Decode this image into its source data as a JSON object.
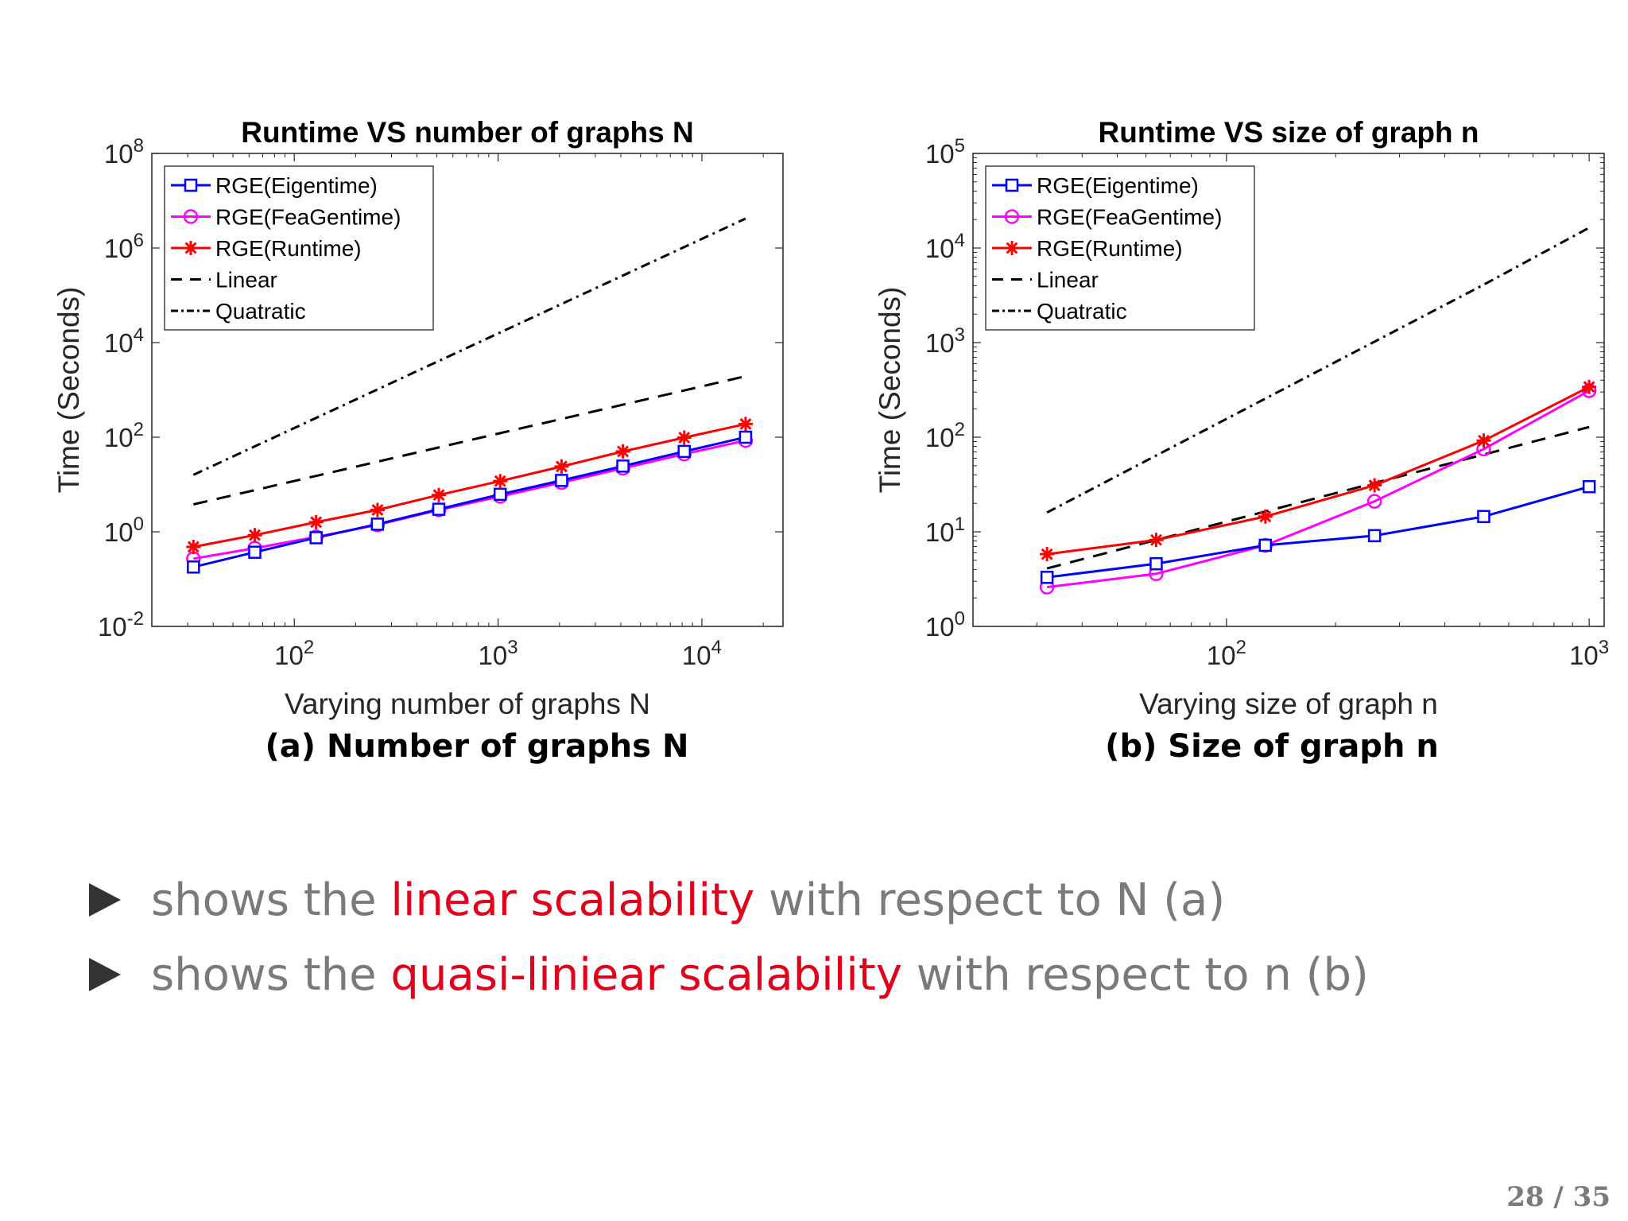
{
  "slide": {
    "page_number": "28 / 35"
  },
  "captions": {
    "a": "(a) Number of graphs N",
    "b": "(b) Size of graph n"
  },
  "bullets": [
    {
      "prefix": "shows the ",
      "highlight": "linear scalability",
      "suffix": " with respect to N (a)"
    },
    {
      "prefix": "shows the ",
      "highlight": "quasi-liniear scalability",
      "suffix": " with respect to n (b)"
    }
  ],
  "colors": {
    "eigen": "#0000ff",
    "feagen": "#ff00ff",
    "runtime": "#ff0000",
    "reference": "#000000",
    "highlight": "#e3001b",
    "text_gray": "#7a7a7a"
  },
  "chart_data": [
    {
      "type": "line",
      "title": "Runtime VS number of graphs N",
      "xlabel": "Varying number of graphs N",
      "ylabel": "Time (Seconds)",
      "xscale": "log",
      "yscale": "log",
      "xlim": [
        20,
        25000
      ],
      "ylim": [
        0.01,
        100000000
      ],
      "xticks": [
        {
          "v": 100,
          "base": "10",
          "exp": "2"
        },
        {
          "v": 1000,
          "base": "10",
          "exp": "3"
        },
        {
          "v": 10000,
          "base": "10",
          "exp": "4"
        }
      ],
      "yticks": [
        {
          "v": 0.01,
          "base": "10",
          "exp": "-2"
        },
        {
          "v": 1,
          "base": "10",
          "exp": "0"
        },
        {
          "v": 100,
          "base": "10",
          "exp": "2"
        },
        {
          "v": 10000,
          "base": "10",
          "exp": "4"
        },
        {
          "v": 1000000,
          "base": "10",
          "exp": "6"
        },
        {
          "v": 100000000,
          "base": "10",
          "exp": "8"
        }
      ],
      "x": [
        32,
        64,
        128,
        256,
        512,
        1024,
        2048,
        4096,
        8192,
        16384
      ],
      "legend_position": "top-left",
      "series": [
        {
          "name": "RGE(Eigentime)",
          "color": "#0000ff",
          "marker": "square",
          "dash": "",
          "values": [
            0.18,
            0.37,
            0.75,
            1.45,
            3.0,
            6.2,
            12.2,
            24.5,
            50,
            100
          ]
        },
        {
          "name": "RGE(FeaGentime)",
          "color": "#ff00ff",
          "marker": "circle",
          "dash": "",
          "values": [
            0.27,
            0.45,
            0.78,
            1.4,
            2.9,
            5.6,
            11,
            22,
            44,
            85
          ]
        },
        {
          "name": "RGE(Runtime)",
          "color": "#ff0000",
          "marker": "star",
          "dash": "",
          "values": [
            0.48,
            0.85,
            1.6,
            2.9,
            6.0,
            11.8,
            24,
            50,
            98,
            190
          ]
        },
        {
          "name": "Linear",
          "color": "#000000",
          "marker": "none",
          "dash": "18,12",
          "values": [
            3.8,
            7.6,
            15.2,
            30.4,
            60.8,
            122,
            243,
            487,
            973,
            1946
          ]
        },
        {
          "name": "Quatratic",
          "color": "#000000",
          "marker": "none",
          "dash": "12,6,3,6",
          "values": [
            16,
            64,
            256,
            1024,
            4096,
            16384,
            65536,
            262144,
            1048576,
            4194304
          ]
        }
      ]
    },
    {
      "type": "line",
      "title": "Runtime VS size of graph n",
      "xlabel": "Varying size of graph n",
      "ylabel": "Time (Seconds)",
      "xscale": "log",
      "yscale": "log",
      "xlim": [
        20,
        1100
      ],
      "ylim": [
        1,
        100000
      ],
      "xticks": [
        {
          "v": 100,
          "base": "10",
          "exp": "2"
        },
        {
          "v": 1000,
          "base": "10",
          "exp": "3"
        }
      ],
      "yticks": [
        {
          "v": 1,
          "base": "10",
          "exp": "0"
        },
        {
          "v": 10,
          "base": "10",
          "exp": "1"
        },
        {
          "v": 100,
          "base": "10",
          "exp": "2"
        },
        {
          "v": 1000,
          "base": "10",
          "exp": "3"
        },
        {
          "v": 10000,
          "base": "10",
          "exp": "4"
        },
        {
          "v": 100000,
          "base": "10",
          "exp": "5"
        }
      ],
      "x": [
        32,
        64,
        128,
        256,
        512,
        1000
      ],
      "legend_position": "top-left",
      "series": [
        {
          "name": "RGE(Eigentime)",
          "color": "#0000ff",
          "marker": "square",
          "dash": "",
          "values": [
            3.3,
            4.6,
            7.2,
            9.1,
            14.5,
            30
          ]
        },
        {
          "name": "RGE(FeaGentime)",
          "color": "#ff00ff",
          "marker": "circle",
          "dash": "",
          "values": [
            2.6,
            3.6,
            7.2,
            21,
            75,
            310
          ]
        },
        {
          "name": "RGE(Runtime)",
          "color": "#ff0000",
          "marker": "star",
          "dash": "",
          "values": [
            5.8,
            8.2,
            14.5,
            31,
            92,
            340
          ]
        },
        {
          "name": "Linear",
          "color": "#000000",
          "marker": "none",
          "dash": "18,12",
          "values": [
            4.1,
            8.2,
            16.4,
            32.8,
            65.6,
            128
          ]
        },
        {
          "name": "Quatratic",
          "color": "#000000",
          "marker": "none",
          "dash": "12,6,3,6",
          "values": [
            16,
            64,
            256,
            1024,
            4096,
            16384
          ]
        }
      ]
    }
  ]
}
